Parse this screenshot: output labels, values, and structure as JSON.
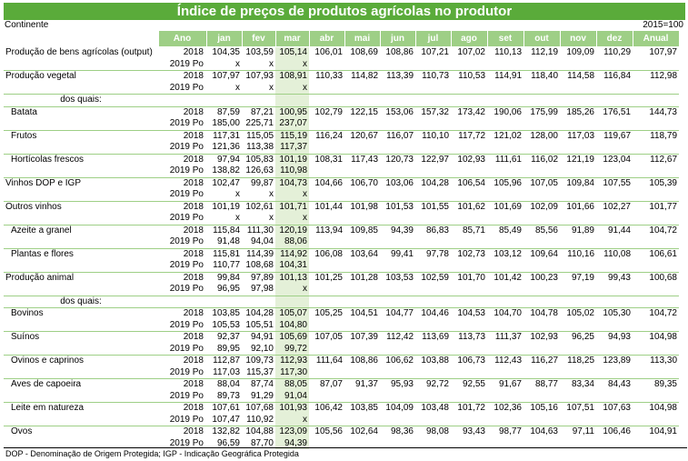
{
  "title": "Índice de preços de produtos agrícolas no produtor",
  "region": "Continente",
  "base": "2015=100",
  "columns": [
    "Ano",
    "jan",
    "fev",
    "mar",
    "abr",
    "mai",
    "jun",
    "jul",
    "ago",
    "set",
    "out",
    "nov",
    "dez",
    "Anual"
  ],
  "rows": [
    {
      "label": "Produção de bens agrícolas (output)",
      "indent": false,
      "year": "2018",
      "v": [
        "104,35",
        "103,59",
        "105,14",
        "106,01",
        "108,69",
        "108,86",
        "107,21",
        "107,02",
        "110,13",
        "112,19",
        "109,09",
        "110,29",
        "107,97"
      ]
    },
    {
      "label": "",
      "indent": false,
      "year": "2019 Po",
      "v": [
        "x",
        "x",
        "x",
        "",
        "",
        "",
        "",
        "",
        "",
        "",
        "",
        "",
        ""
      ]
    },
    {
      "label": "Produção vegetal",
      "indent": false,
      "year": "2018",
      "v": [
        "107,97",
        "107,93",
        "108,91",
        "110,33",
        "114,82",
        "113,39",
        "110,73",
        "110,53",
        "114,91",
        "118,40",
        "114,58",
        "116,84",
        "112,98"
      ]
    },
    {
      "label": "",
      "indent": false,
      "year": "2019 Po",
      "v": [
        "x",
        "x",
        "x",
        "",
        "",
        "",
        "",
        "",
        "",
        "",
        "",
        "",
        ""
      ]
    },
    {
      "label": "dos quais:",
      "indent": false,
      "dq": true,
      "year": "",
      "v": [
        "",
        "",
        "",
        "",
        "",
        "",
        "",
        "",
        "",
        "",
        "",
        "",
        ""
      ]
    },
    {
      "label": "Batata",
      "indent": true,
      "year": "2018",
      "v": [
        "87,59",
        "87,21",
        "100,95",
        "102,79",
        "122,15",
        "153,06",
        "157,32",
        "173,42",
        "190,06",
        "175,99",
        "185,26",
        "176,51",
        "144,73"
      ]
    },
    {
      "label": "",
      "indent": false,
      "year": "2019 Po",
      "v": [
        "185,00",
        "225,71",
        "237,07",
        "",
        "",
        "",
        "",
        "",
        "",
        "",
        "",
        "",
        ""
      ]
    },
    {
      "label": "Frutos",
      "indent": true,
      "year": "2018",
      "v": [
        "117,31",
        "115,05",
        "115,19",
        "116,24",
        "120,67",
        "116,07",
        "110,10",
        "117,72",
        "121,02",
        "128,00",
        "117,03",
        "119,67",
        "118,79"
      ]
    },
    {
      "label": "",
      "indent": false,
      "year": "2019 Po",
      "v": [
        "121,36",
        "113,38",
        "117,37",
        "",
        "",
        "",
        "",
        "",
        "",
        "",
        "",
        "",
        ""
      ]
    },
    {
      "label": "Hortícolas frescos",
      "indent": true,
      "year": "2018",
      "v": [
        "97,94",
        "105,83",
        "101,19",
        "108,31",
        "117,43",
        "120,73",
        "122,97",
        "102,93",
        "111,61",
        "116,02",
        "121,19",
        "123,04",
        "112,67"
      ]
    },
    {
      "label": "",
      "indent": false,
      "year": "2019 Po",
      "v": [
        "138,82",
        "126,63",
        "110,98",
        "",
        "",
        "",
        "",
        "",
        "",
        "",
        "",
        "",
        ""
      ]
    },
    {
      "label": "Vinhos DOP e IGP",
      "indent": false,
      "year": "2018",
      "v": [
        "102,47",
        "99,87",
        "104,73",
        "104,66",
        "106,70",
        "103,06",
        "104,28",
        "106,54",
        "105,96",
        "107,05",
        "109,84",
        "107,55",
        "105,39"
      ]
    },
    {
      "label": "",
      "indent": false,
      "year": "2019 Po",
      "v": [
        "x",
        "x",
        "x",
        "",
        "",
        "",
        "",
        "",
        "",
        "",
        "",
        "",
        ""
      ]
    },
    {
      "label": "Outros vinhos",
      "indent": false,
      "year": "2018",
      "v": [
        "101,19",
        "102,61",
        "101,71",
        "101,44",
        "101,98",
        "101,53",
        "101,55",
        "101,62",
        "101,69",
        "102,09",
        "101,66",
        "102,27",
        "101,77"
      ]
    },
    {
      "label": "",
      "indent": false,
      "year": "2019 Po",
      "v": [
        "x",
        "x",
        "x",
        "",
        "",
        "",
        "",
        "",
        "",
        "",
        "",
        "",
        ""
      ]
    },
    {
      "label": "Azeite a granel",
      "indent": true,
      "year": "2018",
      "v": [
        "115,84",
        "111,30",
        "120,19",
        "113,94",
        "109,85",
        "94,39",
        "86,83",
        "85,71",
        "85,49",
        "85,56",
        "91,89",
        "91,44",
        "104,72"
      ]
    },
    {
      "label": "",
      "indent": false,
      "year": "2019 Po",
      "v": [
        "91,48",
        "94,04",
        "88,06",
        "",
        "",
        "",
        "",
        "",
        "",
        "",
        "",
        "",
        ""
      ]
    },
    {
      "label": "Plantas e flores",
      "indent": true,
      "year": "2018",
      "v": [
        "115,81",
        "114,39",
        "114,92",
        "106,08",
        "103,64",
        "99,41",
        "97,78",
        "102,73",
        "103,12",
        "109,64",
        "110,16",
        "110,08",
        "106,61"
      ]
    },
    {
      "label": "",
      "indent": false,
      "year": "2019 Po",
      "v": [
        "110,77",
        "108,68",
        "104,31",
        "",
        "",
        "",
        "",
        "",
        "",
        "",
        "",
        "",
        ""
      ]
    },
    {
      "label": "Produção animal",
      "indent": false,
      "year": "2018",
      "v": [
        "99,84",
        "97,89",
        "101,13",
        "101,25",
        "101,28",
        "103,53",
        "102,59",
        "101,70",
        "101,42",
        "100,23",
        "97,19",
        "99,43",
        "100,68"
      ]
    },
    {
      "label": "",
      "indent": false,
      "year": "2019 Po",
      "v": [
        "96,95",
        "97,98",
        "x",
        "",
        "",
        "",
        "",
        "",
        "",
        "",
        "",
        "",
        ""
      ]
    },
    {
      "label": "dos quais:",
      "indent": false,
      "dq": true,
      "year": "",
      "v": [
        "",
        "",
        "",
        "",
        "",
        "",
        "",
        "",
        "",
        "",
        "",
        "",
        ""
      ]
    },
    {
      "label": "Bovinos",
      "indent": true,
      "year": "2018",
      "v": [
        "103,85",
        "104,28",
        "105,07",
        "105,25",
        "104,51",
        "104,77",
        "104,46",
        "104,53",
        "104,70",
        "104,78",
        "105,02",
        "105,30",
        "104,72"
      ]
    },
    {
      "label": "",
      "indent": false,
      "year": "2019 Po",
      "v": [
        "105,53",
        "105,51",
        "104,80",
        "",
        "",
        "",
        "",
        "",
        "",
        "",
        "",
        "",
        ""
      ]
    },
    {
      "label": "Suínos",
      "indent": true,
      "year": "2018",
      "v": [
        "92,37",
        "94,91",
        "105,69",
        "107,05",
        "107,39",
        "112,42",
        "113,69",
        "113,73",
        "111,37",
        "102,93",
        "96,25",
        "94,93",
        "104,98"
      ]
    },
    {
      "label": "",
      "indent": false,
      "year": "2019 Po",
      "v": [
        "89,95",
        "92,10",
        "99,72",
        "",
        "",
        "",
        "",
        "",
        "",
        "",
        "",
        "",
        ""
      ]
    },
    {
      "label": "Ovinos e caprinos",
      "indent": true,
      "year": "2018",
      "v": [
        "112,87",
        "109,73",
        "112,93",
        "111,64",
        "108,86",
        "106,62",
        "103,88",
        "106,73",
        "112,43",
        "116,27",
        "118,25",
        "123,89",
        "113,30"
      ]
    },
    {
      "label": "",
      "indent": false,
      "year": "2019 Po",
      "v": [
        "117,03",
        "115,37",
        "117,30",
        "",
        "",
        "",
        "",
        "",
        "",
        "",
        "",
        "",
        ""
      ]
    },
    {
      "label": "Aves de capoeira",
      "indent": true,
      "year": "2018",
      "v": [
        "88,04",
        "87,74",
        "88,05",
        "87,07",
        "91,37",
        "95,93",
        "92,72",
        "92,55",
        "91,67",
        "88,77",
        "83,34",
        "84,43",
        "89,35"
      ]
    },
    {
      "label": "",
      "indent": false,
      "year": "2019 Po",
      "v": [
        "89,73",
        "91,29",
        "91,04",
        "",
        "",
        "",
        "",
        "",
        "",
        "",
        "",
        "",
        ""
      ]
    },
    {
      "label": "Leite em natureza",
      "indent": true,
      "year": "2018",
      "v": [
        "107,61",
        "107,68",
        "101,93",
        "106,42",
        "103,85",
        "104,09",
        "103,48",
        "101,72",
        "102,36",
        "105,16",
        "107,51",
        "107,63",
        "104,98"
      ]
    },
    {
      "label": "",
      "indent": false,
      "year": "2019 Po",
      "v": [
        "107,47",
        "110,92",
        "x",
        "",
        "",
        "",
        "",
        "",
        "",
        "",
        "",
        "",
        ""
      ]
    },
    {
      "label": "Ovos",
      "indent": true,
      "year": "2018",
      "v": [
        "132,82",
        "104,88",
        "123,09",
        "105,56",
        "102,64",
        "98,36",
        "98,08",
        "93,43",
        "98,77",
        "104,63",
        "97,11",
        "106,46",
        "104,91"
      ]
    },
    {
      "label": "",
      "indent": false,
      "year": "2019 Po",
      "v": [
        "96,59",
        "87,70",
        "94,39",
        "",
        "",
        "",
        "",
        "",
        "",
        "",
        "",
        "",
        ""
      ]
    }
  ],
  "footnote": "DOP - Denominação de Origem Protegida; IGP - Indicação Geográfica Protegida"
}
